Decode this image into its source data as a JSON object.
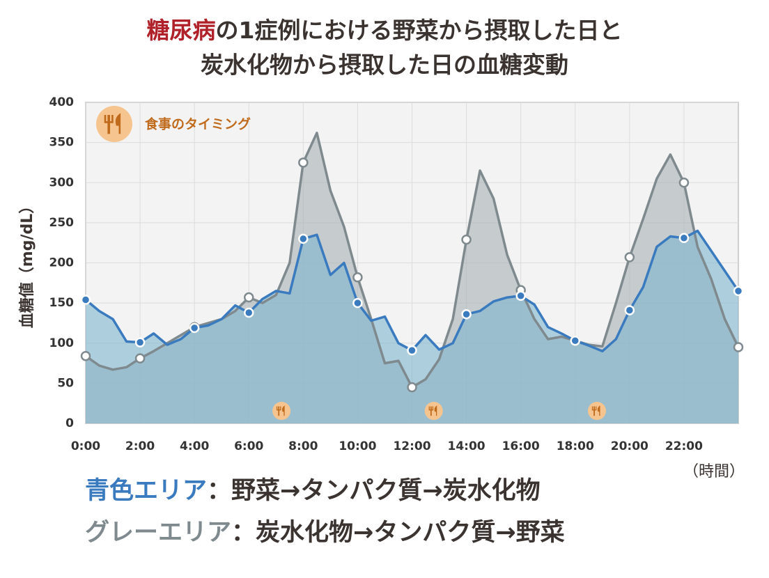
{
  "chart_data": {
    "type": "area",
    "title": [
      "糖尿病",
      "の1症例における野菜から摂取した日と",
      "炭水化物から摂取した日の血糖変動"
    ],
    "title_highlight_color": "#b0212a",
    "y_label": "血糖値（mg/dL）",
    "x_label": "（時間）",
    "x": [
      0,
      0.5,
      1,
      1.5,
      2,
      2.5,
      3,
      3.5,
      4,
      4.5,
      5,
      5.5,
      6,
      6.5,
      7,
      7.5,
      8,
      8.5,
      9,
      9.5,
      10,
      10.5,
      11,
      11.5,
      12,
      12.5,
      13,
      13.5,
      14,
      14.5,
      15,
      15.5,
      16,
      16.5,
      17,
      17.5,
      18,
      18.5,
      19,
      19.5,
      20,
      20.5,
      21,
      21.5,
      22,
      22.5,
      23,
      23.5,
      24
    ],
    "series": [
      {
        "name": "グレーエリア",
        "description": "：炭水化物→タンパク質→野菜",
        "color": "#7f8a8f",
        "fill": "#a9b1b5",
        "values": [
          84,
          72,
          67,
          70,
          81,
          90,
          100,
          110,
          120,
          125,
          130,
          140,
          157,
          150,
          160,
          200,
          325,
          362,
          290,
          245,
          182,
          130,
          75,
          78,
          45,
          55,
          80,
          130,
          229,
          315,
          280,
          210,
          166,
          130,
          105,
          108,
          103,
          98,
          96,
          150,
          207,
          255,
          305,
          335,
          300,
          220,
          180,
          130,
          95
        ]
      },
      {
        "name": "青色エリア",
        "description": "：野菜→タンパク質→炭水化物",
        "color": "#3a7bbf",
        "fill": "#7fb5cf",
        "values": [
          154,
          140,
          130,
          102,
          101,
          112,
          98,
          105,
          119,
          122,
          130,
          147,
          138,
          155,
          165,
          162,
          230,
          235,
          185,
          200,
          150,
          128,
          133,
          100,
          91,
          110,
          92,
          100,
          136,
          140,
          152,
          157,
          159,
          148,
          120,
          112,
          103,
          97,
          90,
          105,
          141,
          170,
          220,
          233,
          231,
          240,
          215,
          190,
          165
        ]
      }
    ],
    "meal_label": "食事のタイミング",
    "meal_color": "#f6c58f",
    "meal_times": [
      7.2,
      12.8,
      18.8
    ],
    "xlim": [
      0,
      24
    ],
    "ylim": [
      0,
      400
    ],
    "yticks": [
      0,
      50,
      100,
      150,
      200,
      250,
      300,
      350,
      400
    ],
    "xticks": [
      {
        "value": 0,
        "label": "0:00"
      },
      {
        "value": 2,
        "label": "2:00"
      },
      {
        "value": 4,
        "label": "4:00"
      },
      {
        "value": 6,
        "label": "6:00"
      },
      {
        "value": 8,
        "label": "8:00"
      },
      {
        "value": 10,
        "label": "10:00"
      },
      {
        "value": 12,
        "label": "12:00"
      },
      {
        "value": 14,
        "label": "14:00"
      },
      {
        "value": 16,
        "label": "16:00"
      },
      {
        "value": 18,
        "label": "18:00"
      },
      {
        "value": 20,
        "label": "20:00"
      },
      {
        "value": 22,
        "label": "22:00"
      }
    ],
    "grid": true
  }
}
